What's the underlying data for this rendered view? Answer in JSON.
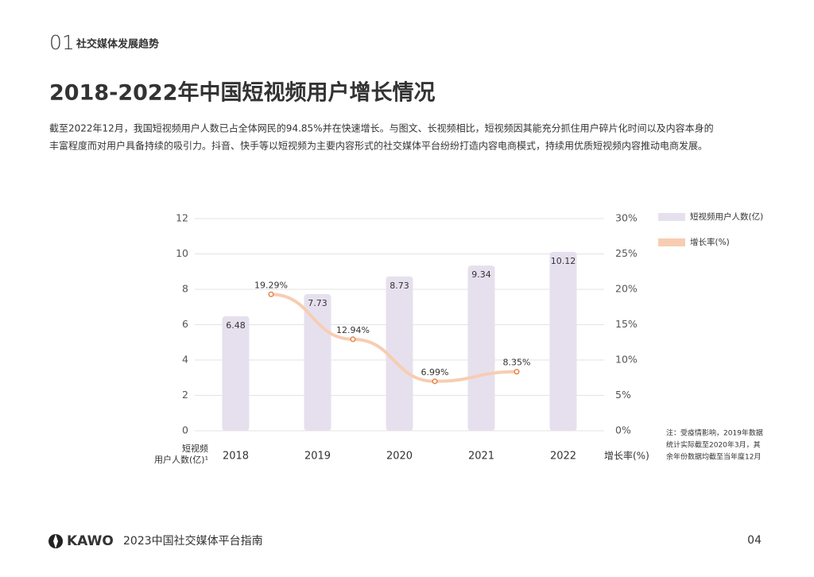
{
  "header": {
    "number": "01",
    "section": "社交媒体发展趋势"
  },
  "title": "2018-2022年中国短视频用户增长情况",
  "paragraph": [
    "截至2022年12月，我国短视频用户人数已占全体网民的94.85%并在快速增长。与图文、长视频相比，短视频因其能充分抓住用户碎片化时间以及内容本身的",
    "丰富程度而对用户具备持续的吸引力。抖音、快手等以短视频为主要内容形式的社交媒体平台纷纷打造内容电商模式，持续用优质短视频内容推动电商发展。"
  ],
  "chart_data": {
    "type": "bar_line",
    "categories": [
      "2018",
      "2019",
      "2020",
      "2021",
      "2022"
    ],
    "series": [
      {
        "name": "短视频用户人数(亿)",
        "type": "bar",
        "color": "#e6e0ee",
        "label_color": "#8a6bb0",
        "values": [
          6.48,
          7.73,
          8.73,
          9.34,
          10.12
        ]
      },
      {
        "name": "增长率(%)",
        "type": "line",
        "axis": "y2",
        "color": "#f7cdb2",
        "marker_color": "#e8834a",
        "values": [
          null,
          19.29,
          12.94,
          6.99,
          8.35
        ],
        "value_labels": [
          null,
          "19.29%",
          "12.94%",
          "6.99%",
          "8.35%"
        ]
      }
    ],
    "y_label": [
      "短视频",
      "用户人数(亿)¹"
    ],
    "y2_label": "增长率(%)",
    "ylim": [
      0,
      12
    ],
    "yticks": [
      0,
      2,
      4,
      6,
      8,
      10,
      12
    ],
    "y2lim": [
      0,
      30
    ],
    "y2ticks": [
      {
        "value": 0,
        "label": "0%"
      },
      {
        "value": 5,
        "label": "5%"
      },
      {
        "value": 10,
        "label": "10%"
      },
      {
        "value": 15,
        "label": "15%"
      },
      {
        "value": 20,
        "label": "20%"
      },
      {
        "value": 25,
        "label": "25%"
      },
      {
        "value": 30,
        "label": "30%"
      }
    ],
    "grid": true,
    "legend": "right",
    "note": [
      "注：受疫情影响，2019年数据",
      "统计实际截至2020年3月，其",
      "余年份数据均截至当年度12月"
    ]
  },
  "footer": {
    "brand": "KAWO",
    "publication": "2023中国社交媒体平台指南",
    "page": "04"
  }
}
